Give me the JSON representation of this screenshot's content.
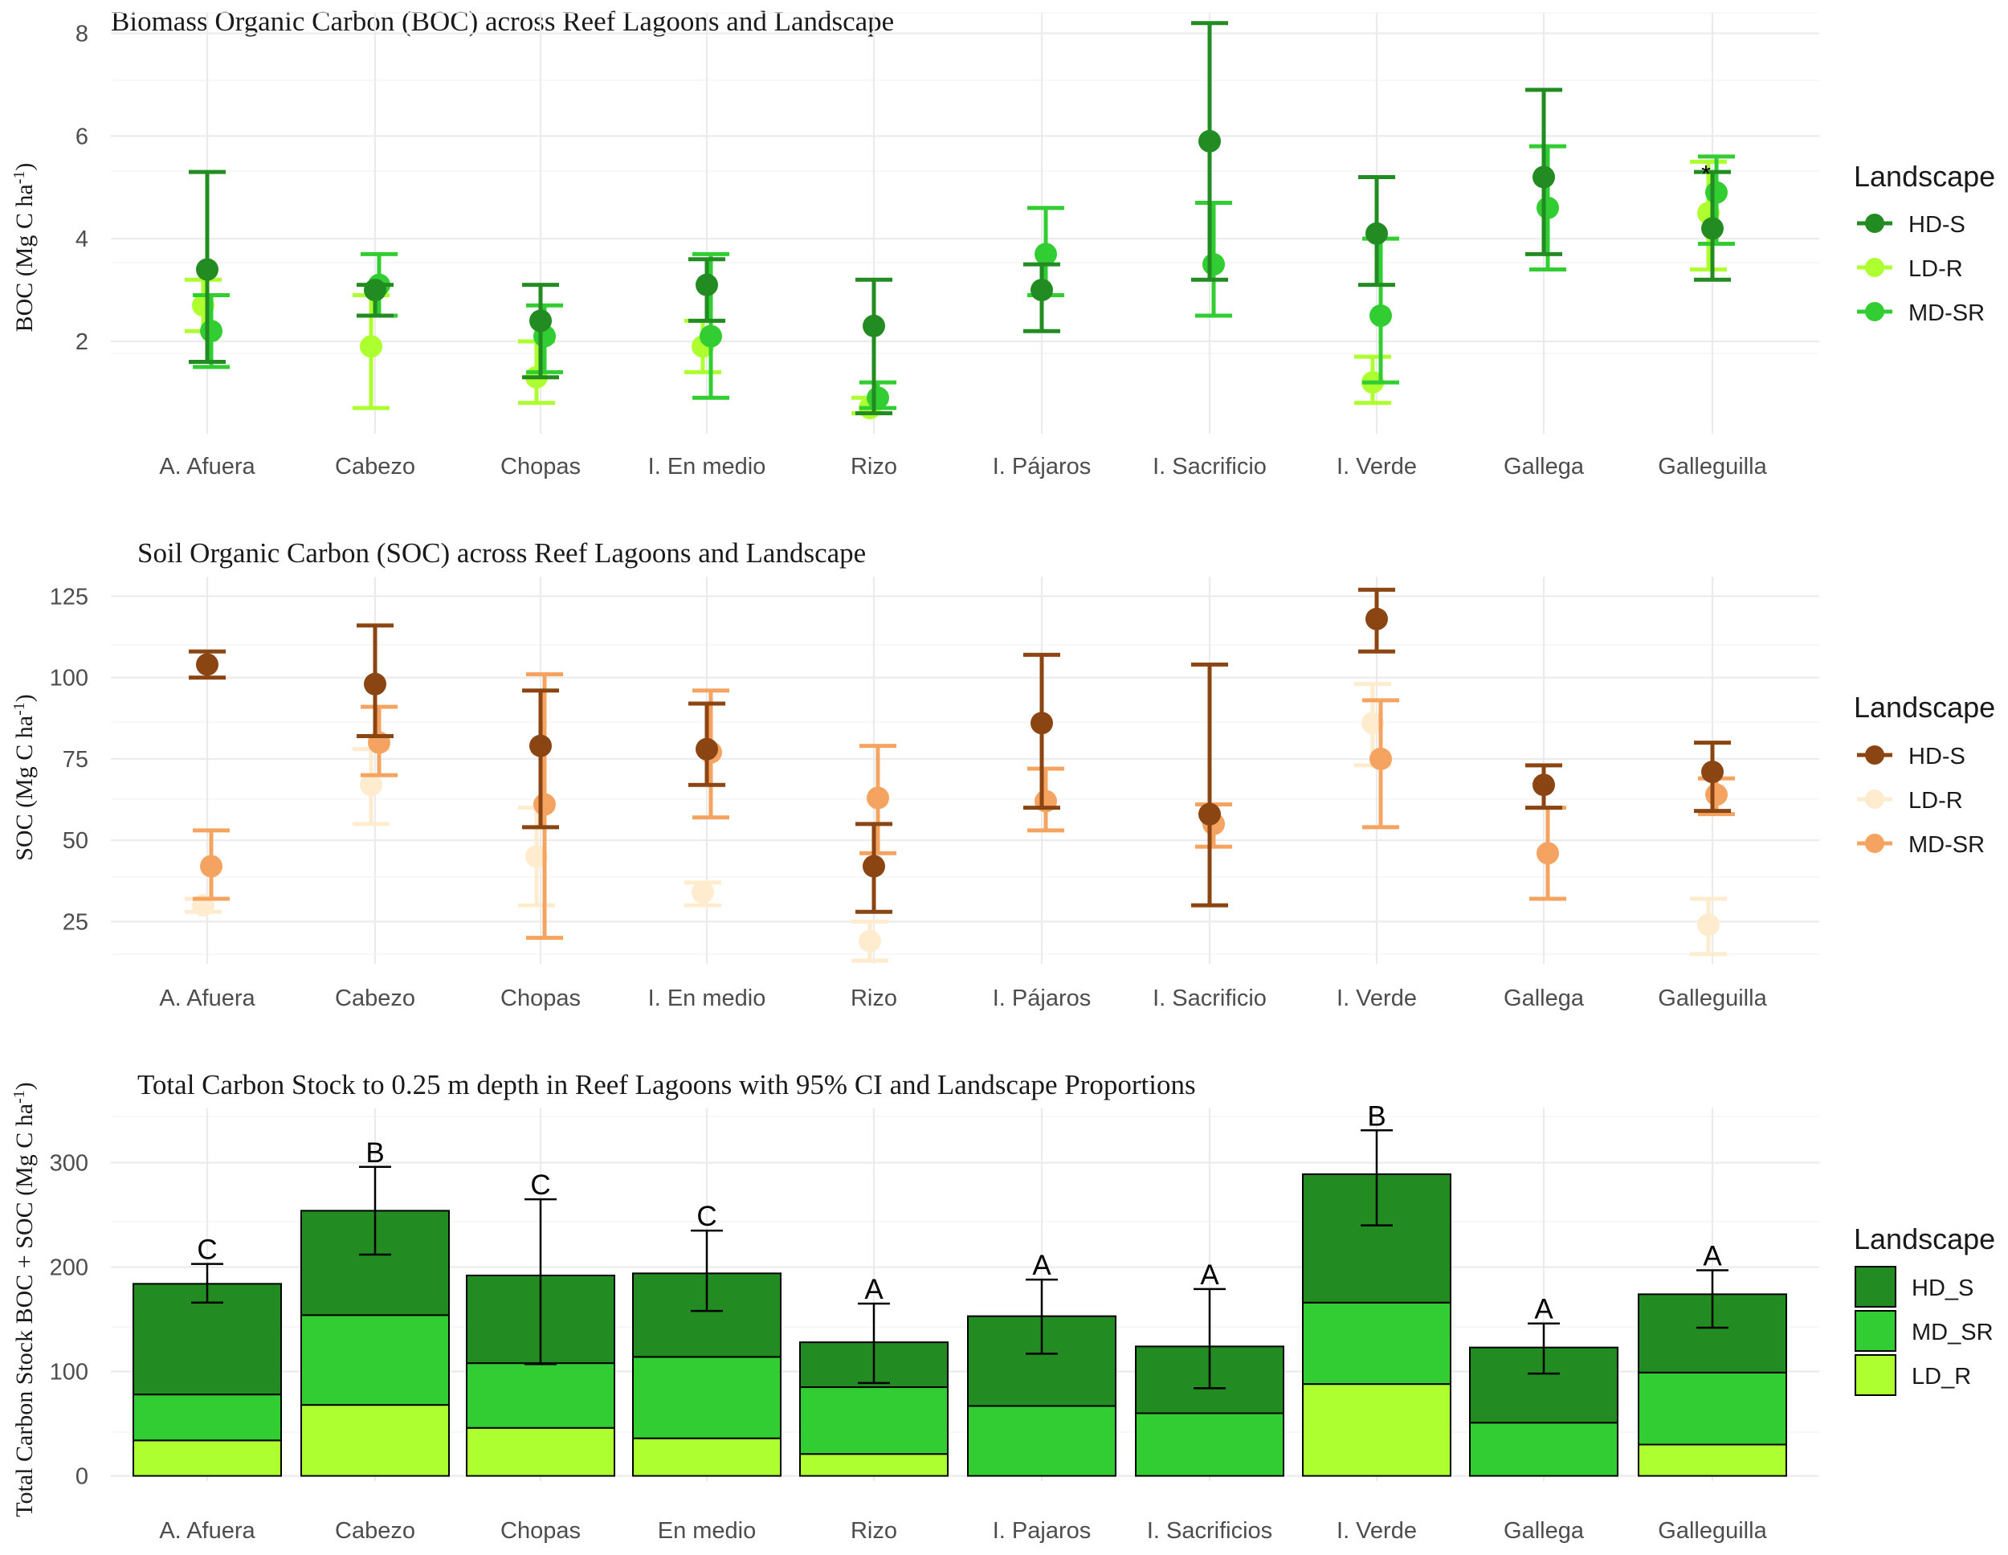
{
  "colors": {
    "boc": {
      "HD-S": "#228b22",
      "LD-R": "#adff2f",
      "MD-SR": "#32cd32"
    },
    "soc": {
      "HD-S": "#8b4513",
      "LD-R": "#ffebcd",
      "MD-SR": "#f4a460"
    },
    "total": {
      "HD_S": "#228b22",
      "MD_SR": "#32cd32",
      "LD_R": "#adff2f"
    }
  },
  "chart_data": [
    {
      "type": "scatter",
      "title": "Biomass Organic Carbon (BOC) across Reef Lagoons and Landscape",
      "ylabel_base": "BOC (Mg C ha",
      "ylabel_sup": "-1",
      "ylabel_end": ")",
      "xlabel": "",
      "ylim": [
        0.2,
        8.4
      ],
      "yticks": [
        2,
        4,
        6,
        8
      ],
      "grid": true,
      "legend": {
        "title": "Landscape",
        "position": "right",
        "entries": [
          "HD-S",
          "LD-R",
          "MD-SR"
        ]
      },
      "categories": [
        "A. Afuera",
        "Cabezo",
        "Chopas",
        "I. En medio",
        "Rizo",
        "I. Pájaros",
        "I. Sacrificio",
        "I. Verde",
        "Gallega",
        "Galleguilla"
      ],
      "series": [
        {
          "name": "HD-S",
          "points": [
            {
              "cat": "A. Afuera",
              "y": 3.4,
              "lo": 1.6,
              "hi": 5.3
            },
            {
              "cat": "Cabezo",
              "y": 3.0,
              "lo": 2.5,
              "hi": 3.1
            },
            {
              "cat": "Chopas",
              "y": 2.4,
              "lo": 1.3,
              "hi": 3.1
            },
            {
              "cat": "I. En medio",
              "y": 3.1,
              "lo": 2.4,
              "hi": 3.6
            },
            {
              "cat": "Rizo",
              "y": 2.3,
              "lo": 0.6,
              "hi": 3.2
            },
            {
              "cat": "I. Pájaros",
              "y": 3.0,
              "lo": 2.2,
              "hi": 3.5
            },
            {
              "cat": "I. Sacrificio",
              "y": 5.9,
              "lo": 3.2,
              "hi": 8.2
            },
            {
              "cat": "I. Verde",
              "y": 4.1,
              "lo": 3.1,
              "hi": 5.2
            },
            {
              "cat": "Gallega",
              "y": 5.2,
              "lo": 3.7,
              "hi": 6.9
            },
            {
              "cat": "Galleguilla",
              "y": 4.2,
              "lo": 3.2,
              "hi": 5.3
            }
          ]
        },
        {
          "name": "LD-R",
          "points": [
            {
              "cat": "A. Afuera",
              "y": 2.7,
              "lo": 2.2,
              "hi": 3.2
            },
            {
              "cat": "Cabezo",
              "y": 1.9,
              "lo": 0.7,
              "hi": 2.9
            },
            {
              "cat": "Chopas",
              "y": 1.3,
              "lo": 0.8,
              "hi": 2.0
            },
            {
              "cat": "I. En medio",
              "y": 1.9,
              "lo": 1.4,
              "hi": 2.4
            },
            {
              "cat": "Rizo",
              "y": 0.7,
              "lo": 0.6,
              "hi": 0.9
            },
            {
              "cat": "I. Verde",
              "y": 1.2,
              "lo": 0.8,
              "hi": 1.7
            },
            {
              "cat": "Galleguilla",
              "y": 4.5,
              "lo": 3.4,
              "hi": 5.5
            }
          ]
        },
        {
          "name": "MD-SR",
          "points": [
            {
              "cat": "A. Afuera",
              "y": 2.2,
              "lo": 1.5,
              "hi": 2.9
            },
            {
              "cat": "Cabezo",
              "y": 3.1,
              "lo": 2.5,
              "hi": 3.7
            },
            {
              "cat": "Chopas",
              "y": 2.1,
              "lo": 1.4,
              "hi": 2.7
            },
            {
              "cat": "I. En medio",
              "y": 2.1,
              "lo": 0.9,
              "hi": 3.7
            },
            {
              "cat": "Rizo",
              "y": 0.9,
              "lo": 0.7,
              "hi": 1.2
            },
            {
              "cat": "I. Pájaros",
              "y": 3.7,
              "lo": 2.9,
              "hi": 4.6
            },
            {
              "cat": "I. Sacrificio",
              "y": 3.5,
              "lo": 2.5,
              "hi": 4.7
            },
            {
              "cat": "I. Verde",
              "y": 2.5,
              "lo": 1.2,
              "hi": 4.0
            },
            {
              "cat": "Gallega",
              "y": 4.6,
              "lo": 3.4,
              "hi": 5.8
            },
            {
              "cat": "Galleguilla",
              "y": 4.9,
              "lo": 3.9,
              "hi": 5.6
            }
          ]
        }
      ],
      "annotations": [
        {
          "cat": "Galleguilla",
          "y": 5.2,
          "text": "*"
        }
      ]
    },
    {
      "type": "scatter",
      "title": "Soil Organic Carbon (SOC) across Reef Lagoons and Landscape",
      "ylabel_base": "SOC (Mg C ha",
      "ylabel_sup": "-1",
      "ylabel_end": ")",
      "xlabel": "",
      "ylim": [
        12,
        131
      ],
      "yticks": [
        25,
        50,
        75,
        100,
        125
      ],
      "grid": true,
      "legend": {
        "title": "Landscape",
        "position": "right",
        "entries": [
          "HD-S",
          "LD-R",
          "MD-SR"
        ]
      },
      "categories": [
        "A. Afuera",
        "Cabezo",
        "Chopas",
        "I. En medio",
        "Rizo",
        "I. Pájaros",
        "I. Sacrificio",
        "I. Verde",
        "Gallega",
        "Galleguilla"
      ],
      "series": [
        {
          "name": "HD-S",
          "points": [
            {
              "cat": "A. Afuera",
              "y": 104,
              "lo": 100,
              "hi": 108
            },
            {
              "cat": "Cabezo",
              "y": 98,
              "lo": 82,
              "hi": 116
            },
            {
              "cat": "Chopas",
              "y": 79,
              "lo": 54,
              "hi": 96
            },
            {
              "cat": "I. En medio",
              "y": 78,
              "lo": 67,
              "hi": 92
            },
            {
              "cat": "Rizo",
              "y": 42,
              "lo": 28,
              "hi": 55
            },
            {
              "cat": "I. Pájaros",
              "y": 86,
              "lo": 60,
              "hi": 107
            },
            {
              "cat": "I. Sacrificio",
              "y": 58,
              "lo": 30,
              "hi": 104
            },
            {
              "cat": "I. Verde",
              "y": 118,
              "lo": 108,
              "hi": 127
            },
            {
              "cat": "Gallega",
              "y": 67,
              "lo": 60,
              "hi": 73
            },
            {
              "cat": "Galleguilla",
              "y": 71,
              "lo": 59,
              "hi": 80
            }
          ]
        },
        {
          "name": "LD-R",
          "points": [
            {
              "cat": "A. Afuera",
              "y": 30,
              "lo": 28,
              "hi": 32
            },
            {
              "cat": "Cabezo",
              "y": 67,
              "lo": 55,
              "hi": 78
            },
            {
              "cat": "Chopas",
              "y": 45,
              "lo": 30,
              "hi": 60
            },
            {
              "cat": "I. En medio",
              "y": 34,
              "lo": 30,
              "hi": 37
            },
            {
              "cat": "Rizo",
              "y": 19,
              "lo": 13,
              "hi": 25
            },
            {
              "cat": "I. Verde",
              "y": 86,
              "lo": 73,
              "hi": 98
            },
            {
              "cat": "Galleguilla",
              "y": 24,
              "lo": 15,
              "hi": 32
            }
          ]
        },
        {
          "name": "MD-SR",
          "points": [
            {
              "cat": "A. Afuera",
              "y": 42,
              "lo": 32,
              "hi": 53
            },
            {
              "cat": "Cabezo",
              "y": 80,
              "lo": 70,
              "hi": 91
            },
            {
              "cat": "Chopas",
              "y": 61,
              "lo": 20,
              "hi": 101
            },
            {
              "cat": "I. En medio",
              "y": 77,
              "lo": 57,
              "hi": 96
            },
            {
              "cat": "Rizo",
              "y": 63,
              "lo": 46,
              "hi": 79
            },
            {
              "cat": "I. Pájaros",
              "y": 62,
              "lo": 53,
              "hi": 72
            },
            {
              "cat": "I. Sacrificio",
              "y": 55,
              "lo": 48,
              "hi": 61
            },
            {
              "cat": "I. Verde",
              "y": 75,
              "lo": 54,
              "hi": 93
            },
            {
              "cat": "Gallega",
              "y": 46,
              "lo": 32,
              "hi": 60
            },
            {
              "cat": "Galleguilla",
              "y": 64,
              "lo": 58,
              "hi": 69
            }
          ]
        }
      ]
    },
    {
      "type": "bar",
      "stacked": true,
      "title": "Total Carbon Stock to 0.25 m depth in Reef Lagoons with 95% CI and Landscape Proportions",
      "ylabel_base": "Total Carbon Stock BOC + SOC (Mg C ha",
      "ylabel_sup": "-1",
      "ylabel_end": ")",
      "xlabel": "",
      "ylim": [
        -5,
        352
      ],
      "yticks": [
        0,
        100,
        200,
        300
      ],
      "grid": true,
      "legend": {
        "title": "Landscape",
        "position": "right",
        "entries": [
          "HD_S",
          "MD_SR",
          "LD_R"
        ]
      },
      "categories": [
        "A. Afuera",
        "Cabezo",
        "Chopas",
        "En medio",
        "Rizo",
        "I. Pajaros",
        "I. Sacrificios",
        "I. Verde",
        "Gallega",
        "Galleguilla"
      ],
      "series": [
        {
          "name": "LD_R",
          "values": [
            34,
            68,
            46,
            36,
            21,
            0,
            0,
            88,
            0,
            30
          ]
        },
        {
          "name": "MD_SR",
          "values": [
            44,
            86,
            62,
            78,
            64,
            67,
            60,
            78,
            51,
            69
          ]
        },
        {
          "name": "HD_S",
          "values": [
            106,
            100,
            84,
            80,
            43,
            86,
            64,
            123,
            72,
            75
          ]
        }
      ],
      "totals": [
        184,
        254,
        192,
        194,
        128,
        153,
        124,
        289,
        123,
        174
      ],
      "ci_low": [
        166,
        212,
        107,
        158,
        89,
        117,
        84,
        240,
        98,
        142
      ],
      "ci_high": [
        203,
        296,
        265,
        235,
        165,
        188,
        179,
        331,
        146,
        197
      ],
      "letters": [
        "C",
        "B",
        "C",
        "C",
        "A",
        "A",
        "A",
        "B",
        "A",
        "A"
      ]
    }
  ]
}
